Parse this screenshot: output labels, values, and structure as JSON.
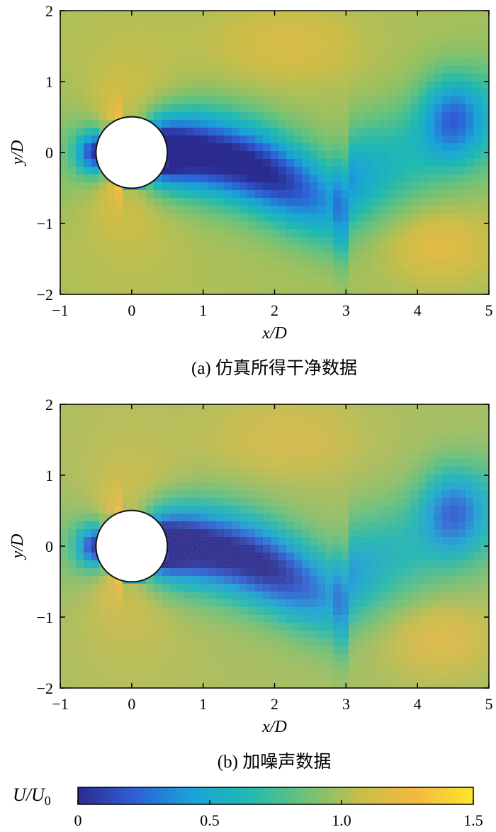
{
  "chart_data": [
    {
      "type": "heatmap",
      "caption": "(a) 仿真所得干净数据",
      "xlabel": "x/D",
      "ylabel": "y/D",
      "xlim": [
        -1,
        5
      ],
      "ylim": [
        -2,
        2
      ],
      "xticks": [
        -1,
        0,
        1,
        2,
        3,
        4,
        5
      ],
      "yticks": [
        -2,
        -1,
        0,
        1,
        2
      ],
      "xtick_labels": [
        "−1",
        "0",
        "1",
        "2",
        "3",
        "4",
        "5"
      ],
      "ytick_labels": [
        "−2",
        "−1",
        "0",
        "1",
        "2"
      ],
      "obstacle": {
        "shape": "circle",
        "center": [
          0,
          0
        ],
        "diameter": 1
      },
      "noise": false
    },
    {
      "type": "heatmap",
      "caption": "(b) 加噪声数据",
      "xlabel": "x/D",
      "ylabel": "y/D",
      "xlim": [
        -1,
        5
      ],
      "ylim": [
        -2,
        2
      ],
      "xticks": [
        -1,
        0,
        1,
        2,
        3,
        4,
        5
      ],
      "yticks": [
        -2,
        -1,
        0,
        1,
        2
      ],
      "xtick_labels": [
        "−1",
        "0",
        "1",
        "2",
        "3",
        "4",
        "5"
      ],
      "ytick_labels": [
        "−2",
        "−1",
        "0",
        "1",
        "2"
      ],
      "obstacle": {
        "shape": "circle",
        "center": [
          0,
          0
        ],
        "diameter": 1
      },
      "noise": true
    }
  ],
  "colorbar": {
    "label_main": "U",
    "label_sep": "/",
    "label_sub_base": "U",
    "label_sub": "0",
    "range": [
      0,
      1.5
    ],
    "ticks": [
      0,
      0.5,
      1.0,
      1.5
    ],
    "tick_labels": [
      "0",
      "0.5",
      "1.0",
      "1.5"
    ],
    "colormap": [
      "#2b2a8e",
      "#2f5fd6",
      "#1aa3d8",
      "#20b9b2",
      "#6ac27a",
      "#c7be4a",
      "#f5b941",
      "#f8e72a"
    ]
  }
}
